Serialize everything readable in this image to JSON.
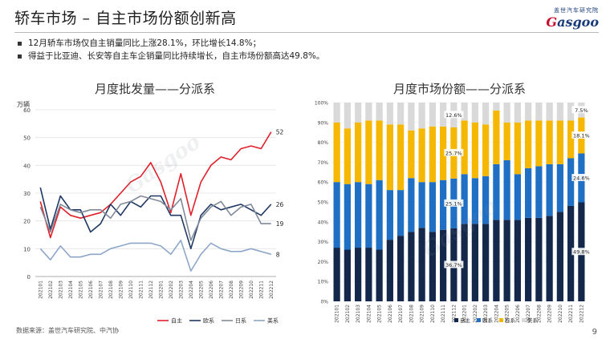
{
  "header": {
    "title": "轿车市场 – 自主市场份额创新高",
    "logo_top": "盖世汽车研究院",
    "logo_brand_g": "G",
    "logo_brand_rest": "asgoo"
  },
  "bullets": [
    "12月轿车市场仅自主销量同比上涨28.1%，环比增长14.8%；",
    "得益于比亚迪、长安等自主车企销量同比持续增长，自主市场份额高达49.8%。"
  ],
  "footer": {
    "source": "数据来源：盖世汽车研究院、中汽协",
    "page": "9"
  },
  "watermark": "Gasgoo",
  "colors": {
    "zizhu": "#e0202a",
    "ouxi": "#1f3864",
    "rixi": "#808a99",
    "meixi": "#8ea6c9",
    "bar_navy": "#14284b",
    "bar_blue": "#1f6fc5",
    "bar_yellow": "#f5b700",
    "bar_gray": "#d9d9d9"
  },
  "chart_data": [
    {
      "type": "line",
      "title": "月度批发量——分派系",
      "ylabel": "万辆",
      "ylim": [
        0,
        60
      ],
      "yticks": [
        0,
        10,
        20,
        30,
        40,
        50,
        60
      ],
      "categories": [
        "202101",
        "202102",
        "202103",
        "202104",
        "202105",
        "202106",
        "202107",
        "202108",
        "202109",
        "202110",
        "202111",
        "202112",
        "202201",
        "202202",
        "202203",
        "202204",
        "202205",
        "202206",
        "202207",
        "202208",
        "202209",
        "202210",
        "202211",
        "202212"
      ],
      "series": [
        {
          "name": "自主",
          "values": [
            27,
            14,
            25,
            22,
            21,
            22,
            23,
            26,
            30,
            34,
            36,
            41,
            34,
            23,
            37,
            22,
            34,
            40,
            43,
            42,
            46,
            47,
            46,
            52
          ],
          "end_label": "52"
        },
        {
          "name": "欧系",
          "values": [
            32,
            17,
            29,
            24,
            24,
            16,
            19,
            26,
            22,
            27,
            25,
            29,
            29,
            22,
            22,
            10,
            22,
            26,
            24,
            25,
            26,
            24,
            22,
            26
          ],
          "end_label": "26"
        },
        {
          "name": "日系",
          "values": [
            25,
            16,
            26,
            24,
            23,
            24,
            24,
            21,
            26,
            27,
            29,
            28,
            27,
            24,
            28,
            13,
            21,
            25,
            27,
            22,
            25,
            26,
            19,
            19
          ],
          "end_label": "19"
        },
        {
          "name": "美系",
          "values": [
            10,
            6,
            11,
            7,
            7,
            8,
            8,
            10,
            11,
            12,
            12,
            12,
            11,
            8,
            13,
            2,
            8,
            12,
            10,
            9,
            9,
            10,
            9,
            8
          ],
          "end_label": "8"
        }
      ]
    },
    {
      "type": "bar",
      "stacked": true,
      "title": "月度市场份额——分派系",
      "ylim": [
        0,
        100
      ],
      "yticks": [
        "0%",
        "10%",
        "20%",
        "30%",
        "40%",
        "50%",
        "60%",
        "70%",
        "80%",
        "90%",
        "100%"
      ],
      "categories": [
        "202101",
        "202102",
        "202103",
        "202104",
        "202105",
        "202106",
        "202107",
        "202108",
        "202109",
        "202110",
        "202111",
        "202112",
        "202201",
        "202202",
        "202203",
        "202204",
        "202205",
        "202206",
        "202207",
        "202208",
        "202209",
        "202210",
        "202211",
        "202212"
      ],
      "series": [
        {
          "name": "自主",
          "values": [
            27,
            26,
            27,
            27,
            26,
            31,
            33,
            35,
            37,
            35,
            36,
            36.7,
            39,
            39,
            39,
            41,
            41,
            41,
            42,
            42,
            43,
            45,
            48,
            49.8
          ]
        },
        {
          "name": "欧系",
          "values": [
            33,
            33,
            33,
            32,
            35,
            25,
            23,
            27,
            23,
            25,
            25,
            25.1,
            25,
            23,
            24,
            28,
            30,
            23,
            25,
            26,
            26,
            24,
            24,
            24.6
          ]
        },
        {
          "name": "日系",
          "values": [
            30,
            28,
            30,
            32,
            30,
            33,
            33,
            24,
            27,
            28,
            27,
            25.7,
            27,
            28,
            26,
            27,
            19,
            26,
            24,
            23,
            22,
            22,
            19,
            18.1
          ]
        },
        {
          "name": "美系",
          "values": [
            10,
            13,
            10,
            9,
            9,
            11,
            11,
            14,
            13,
            12,
            12,
            12.6,
            9,
            10,
            11,
            4,
            10,
            10,
            9,
            9,
            9,
            9,
            9,
            7.5
          ]
        }
      ],
      "data_labels": [
        {
          "series": 3,
          "index": 11,
          "text": "12.6%"
        },
        {
          "series": 2,
          "index": 11,
          "text": "25.7%"
        },
        {
          "series": 1,
          "index": 11,
          "text": "25.1%"
        },
        {
          "series": 0,
          "index": 11,
          "text": "36.7%"
        },
        {
          "series": 3,
          "index": 23,
          "text": "7.5%"
        },
        {
          "series": 2,
          "index": 23,
          "text": "18.1%"
        },
        {
          "series": 1,
          "index": 23,
          "text": "24.6%"
        },
        {
          "series": 0,
          "index": 23,
          "text": "49.8%"
        }
      ]
    }
  ]
}
